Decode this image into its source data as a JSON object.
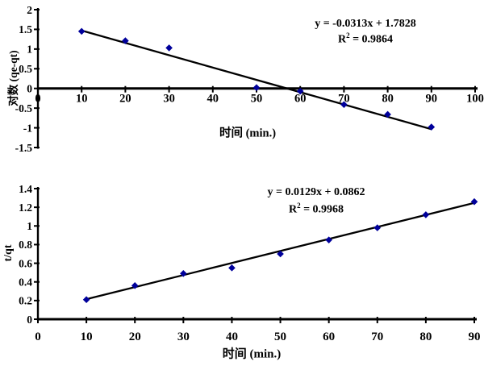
{
  "page": {
    "background": "#ffffff"
  },
  "colors": {
    "marker": "#00009b",
    "axis": "#000000",
    "trendline": "#000000",
    "text": "#000000"
  },
  "chart_data": [
    {
      "type": "scatter",
      "title": "",
      "xlabel": "时间 (min.)",
      "ylabel": "对数 (qe-qt)",
      "xlim": [
        0,
        100
      ],
      "ylim": [
        -1.5,
        2
      ],
      "xticks": [
        "0",
        "10",
        "20",
        "30",
        "40",
        "50",
        "60",
        "70",
        "80",
        "90",
        "100"
      ],
      "yticks": [
        "2",
        "1.5",
        "1",
        "0.5",
        "0",
        "-0.5",
        "-1",
        "-1.5"
      ],
      "grid": false,
      "legend_position": "none",
      "marker": "diamond",
      "marker_color": "#00009b",
      "x": [
        10,
        20,
        30,
        50,
        60,
        70,
        80,
        90
      ],
      "y": [
        1.45,
        1.21,
        1.03,
        0.02,
        -0.07,
        -0.41,
        -0.66,
        -0.98
      ],
      "trendline": {
        "slope": -0.0313,
        "intercept": 1.7828,
        "x_start": 10,
        "x_end": 90,
        "color": "#000000"
      },
      "equation": "y = -0.0313x + 1.7828",
      "r2": {
        "base": "R",
        "exp": "2",
        "rest": " = 0.9864"
      }
    },
    {
      "type": "scatter",
      "title": "",
      "xlabel": "时间 (min.)",
      "ylabel": "t/qt",
      "xlim": [
        0,
        90
      ],
      "ylim": [
        0,
        1.4
      ],
      "xticks": [
        "0",
        "10",
        "20",
        "30",
        "40",
        "50",
        "60",
        "70",
        "80",
        "90"
      ],
      "yticks": [
        "0",
        "0.2",
        "0.4",
        "0.6",
        "0.8",
        "1",
        "1.2",
        "1.4"
      ],
      "grid": false,
      "legend_position": "none",
      "marker": "diamond",
      "marker_color": "#00009b",
      "x": [
        10,
        20,
        30,
        40,
        50,
        60,
        70,
        80,
        90
      ],
      "y": [
        0.21,
        0.36,
        0.49,
        0.55,
        0.7,
        0.85,
        0.98,
        1.12,
        1.26
      ],
      "trendline": {
        "slope": 0.0129,
        "intercept": 0.0862,
        "x_start": 10,
        "x_end": 90,
        "color": "#000000"
      },
      "equation": "y = 0.0129x + 0.0862",
      "r2": {
        "base": "R",
        "exp": "2",
        "rest": " = 0.9968"
      }
    }
  ]
}
